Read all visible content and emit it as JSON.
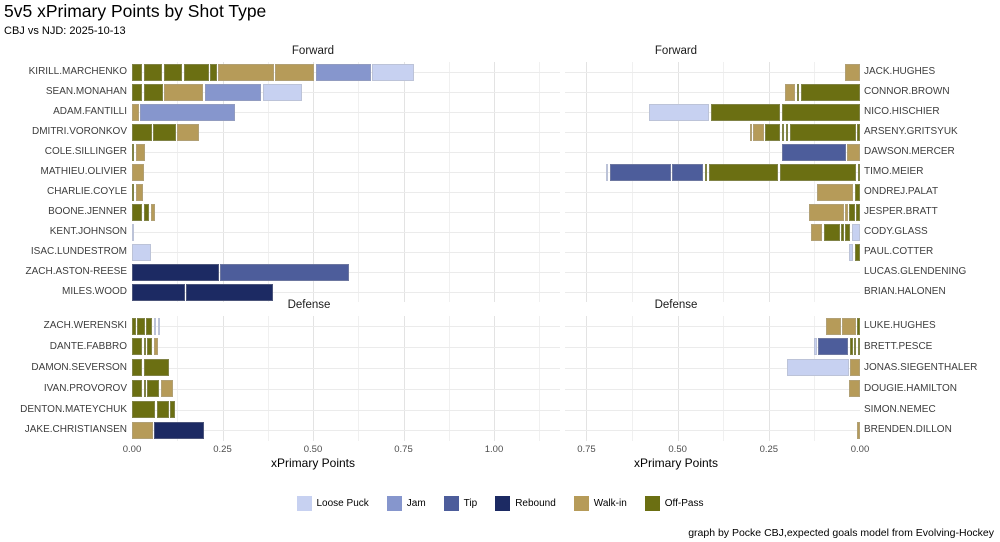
{
  "chart_data": {
    "type": "bar",
    "orientation": "horizontal-stacked",
    "title": "5v5 xPrimary Points by Shot Type",
    "subtitle": "CBJ vs NJD: 2025-10-13",
    "xlabel": "xPrimary Points",
    "caption": "graph by Pocke CBJ,expected goals model from Evolving-Hockey",
    "colors": {
      "loose_puck": "#c7d1f1",
      "jam": "#8696cd",
      "tip": "#4d5d9b",
      "rebound": "#1c2a63",
      "walk_in": "#b69b59",
      "off_pass": "#6b6f12"
    },
    "legend": [
      {
        "label": "Loose Puck",
        "type": "loose_puck"
      },
      {
        "label": "Jam",
        "type": "jam"
      },
      {
        "label": "Tip",
        "type": "tip"
      },
      {
        "label": "Rebound",
        "type": "rebound"
      },
      {
        "label": "Walk-in",
        "type": "walk_in"
      },
      {
        "label": "Off-Pass",
        "type": "off_pass"
      }
    ],
    "axis_left_ticks": [
      {
        "label": "0.00",
        "v": 0
      },
      {
        "label": "0.25",
        "v": 0.25
      },
      {
        "label": "0.50",
        "v": 0.5
      },
      {
        "label": "0.75",
        "v": 0.75
      },
      {
        "label": "1.00",
        "v": 1.0
      }
    ],
    "axis_right_ticks": [
      {
        "label": "0.75",
        "v": 0.75
      },
      {
        "label": "0.50",
        "v": 0.5
      },
      {
        "label": "0.25",
        "v": 0.25
      },
      {
        "label": "0.00",
        "v": 0
      }
    ],
    "panels": [
      {
        "facet": "Forward",
        "side": "left",
        "players": [
          {
            "name": "KIRILL.MARCHENKO",
            "segments": [
              [
                "off_pass",
                0.029
              ],
              [
                "off_pass",
                0.05
              ],
              [
                "off_pass",
                0.052
              ],
              [
                "off_pass",
                0.069
              ],
              [
                "off_pass",
                0.017
              ],
              [
                "walk_in",
                0.154
              ],
              [
                "walk_in",
                0.108
              ],
              [
                "jam",
                0.152
              ],
              [
                "loose_puck",
                0.115
              ]
            ]
          },
          {
            "name": "SEAN.MONAHAN",
            "segments": [
              [
                "off_pass",
                0.028
              ],
              [
                "off_pass",
                0.053
              ],
              [
                "walk_in",
                0.107
              ],
              [
                "jam",
                0.157
              ],
              [
                "loose_puck",
                0.107
              ]
            ]
          },
          {
            "name": "ADAM.FANTILLI",
            "segments": [
              [
                "walk_in",
                0.018
              ],
              [
                "jam",
                0.263
              ]
            ]
          },
          {
            "name": "DMITRI.VORONKOV",
            "segments": [
              [
                "off_pass",
                0.055
              ],
              [
                "off_pass",
                0.062
              ],
              [
                "walk_in",
                0.061
              ]
            ]
          },
          {
            "name": "COLE.SILLINGER",
            "segments": [
              [
                "off_pass",
                0.006
              ],
              [
                "walk_in",
                0.025
              ]
            ]
          },
          {
            "name": "MATHIEU.OLIVIER",
            "segments": [
              [
                "walk_in",
                0.032
              ]
            ]
          },
          {
            "name": "CHARLIE.COYLE",
            "segments": [
              [
                "off_pass",
                0.004
              ],
              [
                "walk_in",
                0.022
              ]
            ]
          },
          {
            "name": "BOONE.JENNER",
            "segments": [
              [
                "off_pass",
                0.028
              ],
              [
                "off_pass",
                0.015
              ],
              [
                "walk_in",
                0.012
              ]
            ]
          },
          {
            "name": "KENT.JOHNSON",
            "segments": [
              [
                "loose_puck",
                0.003
              ]
            ]
          },
          {
            "name": "ISAC.LUNDESTROM",
            "segments": [
              [
                "loose_puck",
                0.053
              ]
            ]
          },
          {
            "name": "ZACH.ASTON-REESE",
            "segments": [
              [
                "rebound",
                0.24
              ],
              [
                "tip",
                0.354
              ]
            ]
          },
          {
            "name": "MILES.WOOD",
            "segments": [
              [
                "rebound",
                0.146
              ],
              [
                "rebound",
                0.24
              ]
            ]
          }
        ]
      },
      {
        "facet": "Forward",
        "side": "right",
        "players": [
          {
            "name": "JACK.HUGHES",
            "segments": [
              [
                "walk_in",
                0.04
              ]
            ]
          },
          {
            "name": "CONNOR.BROWN",
            "segments": [
              [
                "walk_in",
                0.028
              ],
              [
                "off_pass",
                0.006
              ],
              [
                "off_pass",
                0.163
              ]
            ]
          },
          {
            "name": "NICO.HISCHIER",
            "segments": [
              [
                "loose_puck",
                0.166
              ],
              [
                "off_pass",
                0.19
              ],
              [
                "off_pass",
                0.215
              ]
            ]
          },
          {
            "name": "ARSENY.GRITSYUK",
            "segments": [
              [
                "walk_in",
                0.006
              ],
              [
                "walk_in",
                0.028
              ],
              [
                "off_pass",
                0.041
              ],
              [
                "off_pass",
                0.008
              ],
              [
                "off_pass",
                0.007
              ],
              [
                "off_pass",
                0.181
              ],
              [
                "off_pass",
                0.007
              ]
            ]
          },
          {
            "name": "DAWSON.MERCER",
            "segments": [
              [
                "tip",
                0.175
              ],
              [
                "walk_in",
                0.035
              ]
            ]
          },
          {
            "name": "TIMO.MEIER",
            "segments": [
              [
                "loose_puck",
                0.007
              ],
              [
                "tip",
                0.168
              ],
              [
                "tip",
                0.085
              ],
              [
                "off_pass",
                0.007
              ],
              [
                "off_pass",
                0.19
              ],
              [
                "off_pass",
                0.21
              ],
              [
                "off_pass",
                0.006
              ]
            ]
          },
          {
            "name": "ONDREJ.PALAT",
            "segments": [
              [
                "walk_in",
                0.099
              ],
              [
                "off_pass",
                0.014
              ]
            ]
          },
          {
            "name": "JESPER.BRATT",
            "segments": [
              [
                "walk_in",
                0.096
              ],
              [
                "walk_in",
                0.008
              ],
              [
                "off_pass",
                0.014
              ],
              [
                "off_pass",
                0.011
              ]
            ]
          },
          {
            "name": "CODY.GLASS",
            "segments": [
              [
                "walk_in",
                0.03
              ],
              [
                "off_pass",
                0.044
              ],
              [
                "off_pass",
                0.007
              ],
              [
                "off_pass",
                0.013
              ],
              [
                "loose_puck",
                0.023
              ]
            ]
          },
          {
            "name": "PAUL.COTTER",
            "segments": [
              [
                "loose_puck",
                0.012
              ],
              [
                "off_pass",
                0.015
              ]
            ]
          },
          {
            "name": "LUCAS.GLENDENING",
            "segments": []
          },
          {
            "name": "BRIAN.HALONEN",
            "segments": []
          }
        ]
      },
      {
        "facet": "Defense",
        "side": "left",
        "players": [
          {
            "name": "ZACH.WERENSKI",
            "segments": [
              [
                "off_pass",
                0.011
              ],
              [
                "off_pass",
                0.02
              ],
              [
                "off_pass",
                0.017
              ],
              [
                "loose_puck",
                0.006
              ],
              [
                "loose_puck",
                0.004
              ]
            ]
          },
          {
            "name": "DANTE.FABBRO",
            "segments": [
              [
                "off_pass",
                0.028
              ],
              [
                "off_pass",
                0.006
              ],
              [
                "off_pass",
                0.014
              ],
              [
                "walk_in",
                0.011
              ]
            ]
          },
          {
            "name": "DAMON.SEVERSON",
            "segments": [
              [
                "off_pass",
                0.028
              ],
              [
                "off_pass",
                0.069
              ]
            ]
          },
          {
            "name": "IVAN.PROVOROV",
            "segments": [
              [
                "off_pass",
                0.028
              ],
              [
                "off_pass",
                0.006
              ],
              [
                "off_pass",
                0.033
              ],
              [
                "walk_in",
                0.033
              ]
            ]
          },
          {
            "name": "DENTON.MATEYCHUK",
            "segments": [
              [
                "off_pass",
                0.064
              ],
              [
                "off_pass",
                0.033
              ],
              [
                "off_pass",
                0.014
              ]
            ]
          },
          {
            "name": "JAKE.CHRISTIANSEN",
            "segments": [
              [
                "walk_in",
                0.058
              ],
              [
                "rebound",
                0.138
              ]
            ]
          }
        ]
      },
      {
        "facet": "Defense",
        "side": "right",
        "players": [
          {
            "name": "LUKE.HUGHES",
            "segments": [
              [
                "walk_in",
                0.041
              ],
              [
                "walk_in",
                0.036
              ],
              [
                "off_pass",
                0.008
              ]
            ]
          },
          {
            "name": "BRETT.PESCE",
            "segments": [
              [
                "loose_puck",
                0.008
              ],
              [
                "tip",
                0.082
              ],
              [
                "off_pass",
                0.008
              ],
              [
                "off_pass",
                0.006
              ],
              [
                "off_pass",
                0.006
              ]
            ]
          },
          {
            "name": "JONAS.SIEGENTHALER",
            "segments": [
              [
                "loose_puck",
                0.17
              ],
              [
                "walk_in",
                0.027
              ]
            ]
          },
          {
            "name": "DOUGIE.HAMILTON",
            "segments": [
              [
                "walk_in",
                0.03
              ]
            ]
          },
          {
            "name": "SIMON.NEMEC",
            "segments": []
          },
          {
            "name": "BRENDEN.DILLON",
            "segments": [
              [
                "walk_in",
                0.008
              ]
            ]
          }
        ]
      }
    ]
  }
}
